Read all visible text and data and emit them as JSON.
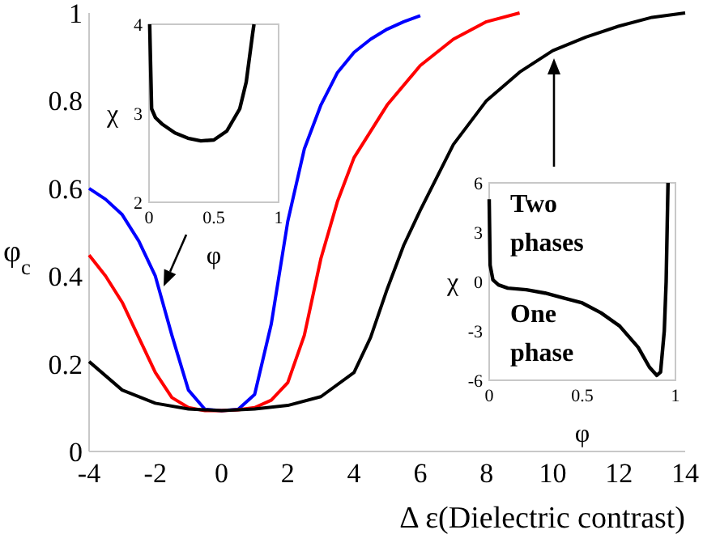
{
  "chart_data": [
    {
      "type": "line",
      "xlabel": "Δ ε(Dielectric contrast)",
      "ylabel": "φ$_{c}$",
      "xlim": [
        -4,
        14
      ],
      "ylim": [
        0,
        1
      ],
      "xticks": [
        -4,
        -2,
        0,
        2,
        4,
        6,
        8,
        10,
        12,
        14
      ],
      "yticks": [
        0,
        0.2,
        0.4,
        0.6,
        0.8,
        1
      ],
      "grid": false,
      "marker": "none",
      "line_style": "solid",
      "series": [
        {
          "color": "#0000ff",
          "x": [
            -4,
            -3.5,
            -3,
            -2.5,
            -2,
            -1.5,
            -1,
            -0.5,
            0,
            0.5,
            1,
            1.5,
            2,
            2.5,
            3,
            3.5,
            4,
            4.5,
            5,
            5.5,
            6
          ],
          "values": [
            0.6,
            0.575,
            0.54,
            0.48,
            0.4,
            0.265,
            0.14,
            0.096,
            0.093,
            0.096,
            0.13,
            0.29,
            0.525,
            0.69,
            0.79,
            0.864,
            0.91,
            0.94,
            0.963,
            0.98,
            0.994
          ]
        },
        {
          "color": "#ff0000",
          "x": [
            -4,
            -3.5,
            -3,
            -2.5,
            -2,
            -1.5,
            -1,
            -0.5,
            0,
            0.5,
            1,
            1.5,
            2,
            2.5,
            3,
            3.5,
            4,
            5,
            6,
            7,
            8,
            9
          ],
          "values": [
            0.448,
            0.4,
            0.34,
            0.26,
            0.18,
            0.123,
            0.1,
            0.093,
            0.093,
            0.095,
            0.1,
            0.117,
            0.157,
            0.265,
            0.44,
            0.57,
            0.67,
            0.79,
            0.88,
            0.94,
            0.98,
            1.0
          ]
        },
        {
          "color": "#000000",
          "x": [
            -4,
            -3,
            -2,
            -1,
            0,
            1,
            2,
            3,
            4,
            4.5,
            5,
            5.5,
            6,
            7,
            8,
            9,
            10,
            11,
            12,
            13,
            14
          ],
          "values": [
            0.205,
            0.14,
            0.11,
            0.097,
            0.093,
            0.097,
            0.105,
            0.125,
            0.18,
            0.26,
            0.37,
            0.47,
            0.55,
            0.7,
            0.8,
            0.865,
            0.914,
            0.945,
            0.97,
            0.99,
            1.0
          ]
        }
      ]
    },
    {
      "type": "line",
      "xlabel": "φ",
      "ylabel": "χ",
      "xlim": [
        0,
        1
      ],
      "ylim": [
        2,
        4
      ],
      "xticks": [
        0,
        0.5,
        1
      ],
      "yticks": [
        2,
        3,
        4
      ],
      "grid": false,
      "marker": "none",
      "line_style": "solid",
      "series": [
        {
          "color": "#000000",
          "x": [
            0.005,
            0.02,
            0.05,
            0.1,
            0.2,
            0.3,
            0.4,
            0.5,
            0.6,
            0.7,
            0.75,
            0.8,
            0.81
          ],
          "values": [
            4,
            3.05,
            2.95,
            2.88,
            2.78,
            2.72,
            2.69,
            2.7,
            2.8,
            3.05,
            3.35,
            3.9,
            4
          ]
        }
      ]
    },
    {
      "type": "line",
      "xlabel": "φ",
      "ylabel": "χ",
      "xlim": [
        0,
        1
      ],
      "ylim": [
        -6,
        6
      ],
      "xticks": [
        0,
        0.5,
        1
      ],
      "yticks": [
        -6,
        -3,
        0,
        3,
        6
      ],
      "grid": false,
      "marker": "none",
      "line_style": "solid",
      "annotations": [
        "Two phases",
        "One phase"
      ],
      "series": [
        {
          "color": "#000000",
          "x": [
            0.0,
            0.005,
            0.02,
            0.05,
            0.1,
            0.2,
            0.3,
            0.4,
            0.5,
            0.6,
            0.7,
            0.8,
            0.86,
            0.9,
            0.92,
            0.94,
            0.95,
            0.96
          ],
          "values": [
            5,
            1,
            0.1,
            -0.2,
            -0.4,
            -0.5,
            -0.7,
            -1.0,
            -1.3,
            -1.9,
            -2.7,
            -4.0,
            -5.2,
            -5.7,
            -5.5,
            -3,
            0,
            6
          ]
        }
      ]
    }
  ]
}
